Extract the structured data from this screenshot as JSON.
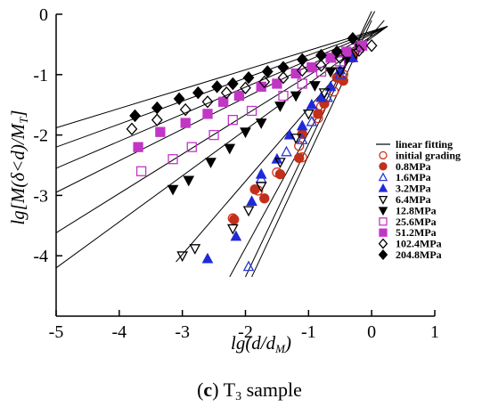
{
  "chart_data": {
    "type": "scatter",
    "xlabel": "lg(d/d_M)",
    "ylabel": "lg[M(δ<d)/M_T]",
    "xlim": [
      -5,
      1
    ],
    "ylim": [
      -5,
      0
    ],
    "x_ticks": [
      "-5",
      "-4",
      "-3",
      "-2",
      "-1",
      "0",
      "1"
    ],
    "y_ticks": [
      "0",
      "-1",
      "-2",
      "-3",
      "-4"
    ],
    "legend_position": "right",
    "fit_label": "linear fitting",
    "series": [
      {
        "name": "initial grading",
        "marker": "circle",
        "filled": false,
        "color": "#d23218",
        "points": [
          [
            -2.2,
            -3.38
          ],
          [
            -1.8,
            -2.92
          ],
          [
            -1.5,
            -2.62
          ],
          [
            -1.15,
            -2.18
          ],
          [
            -1.1,
            -2.37
          ],
          [
            -0.85,
            -1.72
          ],
          [
            -0.8,
            -1.53
          ],
          [
            -0.6,
            -1.28
          ],
          [
            -0.45,
            -1.0
          ],
          [
            -0.3,
            -0.72
          ]
        ]
      },
      {
        "name": "0.8MPa",
        "marker": "circle",
        "filled": true,
        "color": "#c2301a",
        "points": [
          [
            -2.18,
            -3.4
          ],
          [
            -1.85,
            -2.9
          ],
          [
            -1.7,
            -3.05
          ],
          [
            -1.45,
            -2.65
          ],
          [
            -1.15,
            -2.38
          ],
          [
            -1.1,
            -1.98
          ],
          [
            -0.85,
            -1.65
          ],
          [
            -0.75,
            -1.48
          ],
          [
            -0.55,
            -1.05
          ],
          [
            -0.45,
            -1.1
          ],
          [
            -0.3,
            -0.68
          ]
        ]
      },
      {
        "name": "1.6MPa",
        "marker": "triangle-up",
        "filled": false,
        "color": "#2a3ad6",
        "points": [
          [
            -1.95,
            -4.18
          ],
          [
            -1.75,
            -2.72
          ],
          [
            -1.35,
            -2.28
          ],
          [
            -1.1,
            -2.08
          ],
          [
            -0.95,
            -1.78
          ],
          [
            -0.7,
            -1.38
          ],
          [
            -0.5,
            -1.0
          ],
          [
            -0.35,
            -0.72
          ]
        ]
      },
      {
        "name": "3.2MPa",
        "marker": "triangle-up",
        "filled": true,
        "color": "#1f2ad8",
        "points": [
          [
            -2.6,
            -4.05
          ],
          [
            -2.15,
            -3.68
          ],
          [
            -1.9,
            -3.1
          ],
          [
            -1.75,
            -2.65
          ],
          [
            -1.5,
            -2.4
          ],
          [
            -1.3,
            -2.0
          ],
          [
            -1.1,
            -1.85
          ],
          [
            -0.95,
            -1.5
          ],
          [
            -0.8,
            -1.38
          ],
          [
            -0.65,
            -1.2
          ],
          [
            -0.5,
            -0.92
          ],
          [
            -0.3,
            -0.72
          ]
        ]
      },
      {
        "name": "6.4MPa",
        "marker": "triangle-down",
        "filled": false,
        "color": "#000000",
        "points": [
          [
            -3.0,
            -4.0
          ],
          [
            -2.8,
            -3.88
          ],
          [
            -2.2,
            -3.55
          ],
          [
            -1.95,
            -3.25
          ],
          [
            -1.75,
            -2.85
          ],
          [
            -1.45,
            -2.45
          ],
          [
            -1.2,
            -2.05
          ],
          [
            -1.0,
            -1.65
          ],
          [
            -0.75,
            -1.3
          ],
          [
            -0.5,
            -0.95
          ],
          [
            -0.25,
            -0.65
          ]
        ]
      },
      {
        "name": "12.8MPa",
        "marker": "triangle-down",
        "filled": true,
        "color": "#000000",
        "points": [
          [
            -3.15,
            -2.9
          ],
          [
            -2.9,
            -2.75
          ],
          [
            -2.55,
            -2.45
          ],
          [
            -2.25,
            -2.22
          ],
          [
            -2.0,
            -1.95
          ],
          [
            -1.75,
            -1.8
          ],
          [
            -1.45,
            -1.52
          ],
          [
            -1.2,
            -1.35
          ],
          [
            -0.9,
            -1.18
          ],
          [
            -0.65,
            -0.95
          ],
          [
            -0.4,
            -0.75
          ],
          [
            -0.2,
            -0.55
          ]
        ]
      },
      {
        "name": "25.6MPa",
        "marker": "square",
        "filled": false,
        "color": "#c236c6",
        "points": [
          [
            -3.65,
            -2.6
          ],
          [
            -3.15,
            -2.4
          ],
          [
            -2.85,
            -2.2
          ],
          [
            -2.5,
            -2.0
          ],
          [
            -2.2,
            -1.75
          ],
          [
            -1.9,
            -1.6
          ],
          [
            -1.4,
            -1.35
          ],
          [
            -1.1,
            -1.15
          ],
          [
            -0.8,
            -0.95
          ],
          [
            -0.5,
            -0.78
          ],
          [
            -0.2,
            -0.55
          ]
        ]
      },
      {
        "name": "51.2MPa",
        "marker": "square",
        "filled": true,
        "color": "#c236c6",
        "points": [
          [
            -3.7,
            -2.2
          ],
          [
            -3.35,
            -1.95
          ],
          [
            -2.95,
            -1.8
          ],
          [
            -2.6,
            -1.65
          ],
          [
            -2.35,
            -1.45
          ],
          [
            -2.1,
            -1.35
          ],
          [
            -1.75,
            -1.2
          ],
          [
            -1.5,
            -1.15
          ],
          [
            -1.2,
            -0.98
          ],
          [
            -0.95,
            -0.88
          ],
          [
            -0.65,
            -0.72
          ],
          [
            -0.4,
            -0.62
          ],
          [
            -0.15,
            -0.52
          ]
        ]
      },
      {
        "name": "102.4MPa",
        "marker": "diamond",
        "filled": false,
        "color": "#000000",
        "points": [
          [
            -3.8,
            -1.9
          ],
          [
            -3.4,
            -1.75
          ],
          [
            -2.95,
            -1.58
          ],
          [
            -2.6,
            -1.45
          ],
          [
            -2.3,
            -1.3
          ],
          [
            -2.0,
            -1.22
          ],
          [
            -1.7,
            -1.12
          ],
          [
            -1.4,
            -1.05
          ],
          [
            -1.1,
            -0.93
          ],
          [
            -0.8,
            -0.85
          ],
          [
            -0.5,
            -0.72
          ],
          [
            -0.2,
            -0.6
          ],
          [
            0.0,
            -0.52
          ]
        ]
      },
      {
        "name": "204.8MPa",
        "marker": "diamond",
        "filled": true,
        "color": "#000000",
        "points": [
          [
            -3.75,
            -1.68
          ],
          [
            -3.4,
            -1.55
          ],
          [
            -3.05,
            -1.4
          ],
          [
            -2.75,
            -1.3
          ],
          [
            -2.45,
            -1.2
          ],
          [
            -2.2,
            -1.15
          ],
          [
            -1.95,
            -1.05
          ],
          [
            -1.65,
            -0.95
          ],
          [
            -1.4,
            -0.88
          ],
          [
            -1.1,
            -0.75
          ],
          [
            -0.8,
            -0.68
          ],
          [
            -0.55,
            -0.62
          ],
          [
            -0.3,
            -0.4
          ]
        ]
      }
    ],
    "fit_lines": [
      [
        [
          -5,
          -1.88
        ],
        [
          0.25,
          -0.2
        ]
      ],
      [
        [
          -5,
          -2.2
        ],
        [
          0.25,
          -0.2
        ]
      ],
      [
        [
          -5,
          -2.55
        ],
        [
          0.25,
          -0.2
        ]
      ],
      [
        [
          -5,
          -2.95
        ],
        [
          0.25,
          -0.2
        ]
      ],
      [
        [
          -5,
          -3.62
        ],
        [
          0.25,
          -0.2
        ]
      ],
      [
        [
          -5,
          -4.2
        ],
        [
          0.25,
          -0.2
        ]
      ],
      [
        [
          -3.1,
          -4.1
        ],
        [
          0.2,
          -0.1
        ]
      ],
      [
        [
          -2.25,
          -4.35
        ],
        [
          0.05,
          0.05
        ]
      ],
      [
        [
          -2.0,
          -4.35
        ],
        [
          0.0,
          0.05
        ]
      ],
      [
        [
          -1.9,
          -4.35
        ],
        [
          0.0,
          -0.1
        ]
      ]
    ]
  },
  "caption": {
    "prefix": "(",
    "letter": "c",
    "suffix": ") T",
    "subscript": "3",
    "rest": " sample"
  }
}
